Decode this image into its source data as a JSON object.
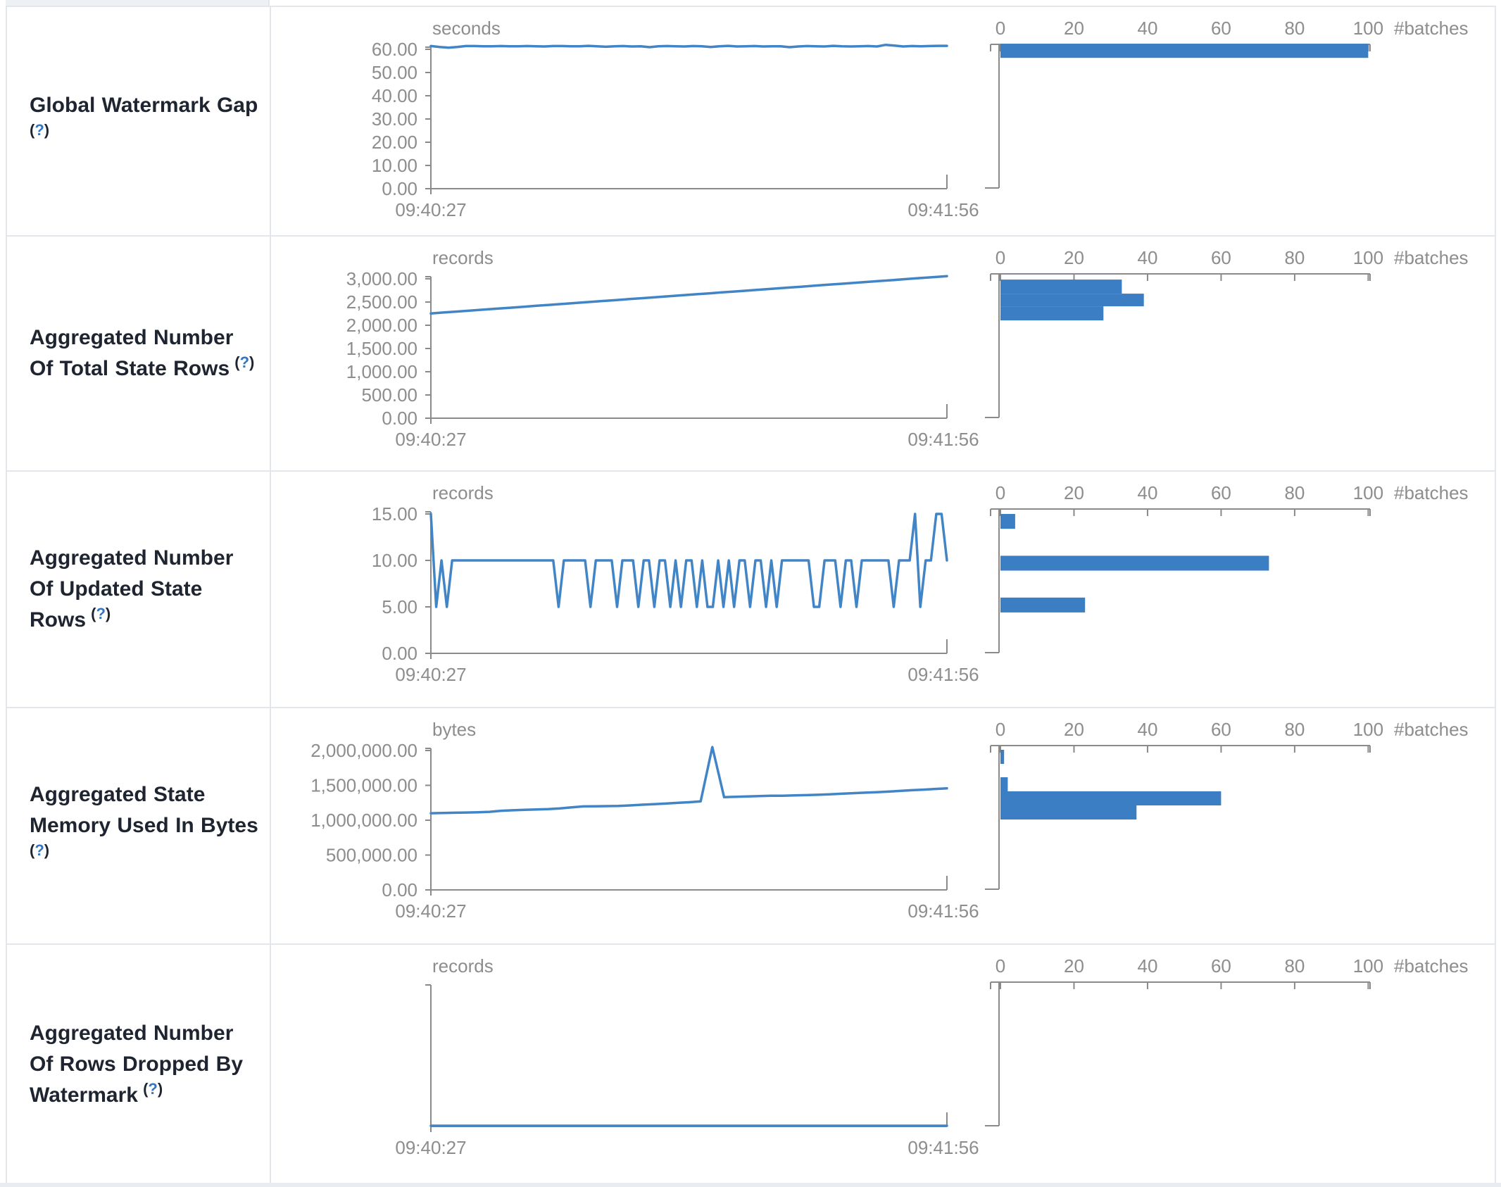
{
  "page": {
    "bg": "#ffffff",
    "page_edge_bg": "#e9edf1",
    "border_color": "#e3e6ea",
    "axis_color": "#8a8a8a",
    "tick_text_color": "#8d8d8d",
    "label_text_color": "#1f2530",
    "help_link_color": "#3276c3",
    "line_color": "#4285c6",
    "bar_color": "#3b7ec4"
  },
  "x_axis": {
    "start": "09:40:27",
    "end": "09:41:56"
  },
  "histogram_axis": {
    "tick_labels": [
      "0",
      "20",
      "40",
      "60",
      "80",
      "100"
    ],
    "tick_values": [
      0,
      20,
      40,
      60,
      80,
      100
    ],
    "unit_label": "#batches",
    "max": 100
  },
  "metrics": [
    {
      "label": "Global Watermark Gap",
      "help": "?"
    },
    {
      "label": "Aggregated Number Of Total State Rows",
      "help": "?"
    },
    {
      "label": "Aggregated Number Of Updated State Rows",
      "help": "?"
    },
    {
      "label": "Aggregated State Memory Used In Bytes",
      "help": "?"
    },
    {
      "label": "Aggregated Number Of Rows Dropped By Watermark",
      "help": "?"
    }
  ],
  "chart_data": [
    {
      "type": "line",
      "title": "Global Watermark Gap",
      "unit": "seconds",
      "x_range": [
        "09:40:27",
        "09:41:56"
      ],
      "y_scale_max": 60,
      "y_ticks": [
        60,
        50,
        40,
        30,
        20,
        10,
        0
      ],
      "y_tick_labels": [
        "60.00",
        "50.00",
        "40.00",
        "30.00",
        "20.00",
        "10.00",
        "0.00"
      ],
      "values": [
        61.4,
        61.0,
        60.7,
        61.0,
        61.4,
        61.4,
        61.3,
        61.3,
        61.4,
        61.3,
        61.3,
        61.4,
        61.3,
        61.2,
        61.4,
        61.4,
        61.3,
        61.3,
        61.5,
        61.3,
        61.1,
        61.3,
        61.4,
        61.2,
        61.3,
        60.9,
        61.3,
        61.4,
        61.3,
        61.2,
        61.4,
        61.3,
        61.0,
        61.3,
        61.5,
        61.2,
        61.3,
        61.4,
        61.2,
        61.3,
        61.3,
        60.9,
        61.2,
        61.4,
        61.3,
        61.2,
        61.5,
        61.3,
        61.2,
        61.3,
        61.4,
        61.2,
        61.9,
        61.6,
        61.2,
        61.4,
        61.3,
        61.4,
        61.5,
        61.5
      ],
      "histogram": {
        "type": "bar",
        "xlabel": "#batches",
        "x_ticks": [
          0,
          20,
          40,
          60,
          80,
          100
        ],
        "bins": [
          {
            "count": 100,
            "value_range": [
              56.3,
              62.4
            ]
          }
        ]
      }
    },
    {
      "type": "line",
      "title": "Aggregated Number Of Total State Rows",
      "unit": "records",
      "x_range": [
        "09:40:27",
        "09:41:56"
      ],
      "y_scale_max": 3000,
      "y_ticks": [
        3000,
        2500,
        2000,
        1500,
        1000,
        500,
        0
      ],
      "y_tick_labels": [
        "3,000.00",
        "2,500.00",
        "2,000.00",
        "1,500.00",
        "1,000.00",
        "500.00",
        "0.00"
      ],
      "values": [
        2255,
        2275,
        2295,
        2316,
        2337,
        2357,
        2378,
        2398,
        2419,
        2440,
        2460,
        2481,
        2501,
        2522,
        2543,
        2563,
        2584,
        2604,
        2625,
        2646,
        2666,
        2687,
        2707,
        2728,
        2749,
        2769,
        2790,
        2810,
        2831,
        2852,
        2872,
        2893,
        2913,
        2934,
        2955,
        2975,
        2996,
        3016,
        3037,
        3058
      ],
      "histogram": {
        "type": "bar",
        "xlabel": "#batches",
        "x_ticks": [
          0,
          20,
          40,
          60,
          80,
          100
        ],
        "bins": [
          {
            "count": 33,
            "value_range": [
              2681,
              2984
            ]
          },
          {
            "count": 39,
            "value_range": [
              2408,
              2681
            ]
          },
          {
            "count": 28,
            "value_range": [
              2105,
              2408
            ]
          }
        ]
      }
    },
    {
      "type": "line",
      "title": "Aggregated Number Of Updated State Rows",
      "unit": "records",
      "x_range": [
        "09:40:27",
        "09:41:56"
      ],
      "y_scale_max": 15,
      "y_ticks": [
        15,
        10,
        5,
        0
      ],
      "y_tick_labels": [
        "15.00",
        "10.00",
        "5.00",
        "0.00"
      ],
      "values": [
        15,
        5,
        10,
        5,
        10,
        10,
        10,
        10,
        10,
        10,
        10,
        10,
        10,
        10,
        10,
        10,
        10,
        10,
        10,
        10,
        10,
        10,
        10,
        10,
        5,
        10,
        10,
        10,
        10,
        10,
        5,
        10,
        10,
        10,
        10,
        5,
        10,
        10,
        10,
        5,
        10,
        10,
        5,
        10,
        10,
        5,
        10,
        5,
        10,
        10,
        5,
        10,
        5,
        5,
        10,
        5,
        10,
        5,
        10,
        10,
        5,
        10,
        10,
        5,
        10,
        5,
        10,
        10,
        10,
        10,
        10,
        10,
        5,
        5,
        10,
        10,
        10,
        5,
        10,
        10,
        5,
        10,
        10,
        10,
        10,
        10,
        10,
        5,
        10,
        10,
        10,
        15,
        5,
        10,
        10,
        15,
        15,
        10
      ],
      "histogram": {
        "type": "bar",
        "xlabel": "#batches",
        "x_ticks": [
          0,
          20,
          40,
          60,
          80,
          100
        ],
        "bins": [
          {
            "count": 4,
            "value_range": [
              13.4,
              15.0
            ]
          },
          {
            "count": 73,
            "value_range": [
              8.9,
              10.5
            ]
          },
          {
            "count": 23,
            "value_range": [
              4.4,
              6.0
            ]
          }
        ]
      }
    },
    {
      "type": "line",
      "title": "Aggregated State Memory Used In Bytes",
      "unit": "bytes",
      "x_range": [
        "09:40:27",
        "09:41:56"
      ],
      "y_scale_max": 2000000,
      "y_ticks": [
        2000000,
        1500000,
        1000000,
        500000,
        0
      ],
      "y_tick_labels": [
        "2,000,000.00",
        "1,500,000.00",
        "1,000,000.00",
        "500,000.00",
        "0.00"
      ],
      "values": [
        1100000,
        1103000,
        1107000,
        1110000,
        1114000,
        1120000,
        1135000,
        1142000,
        1150000,
        1155000,
        1160000,
        1170000,
        1185000,
        1198000,
        1200000,
        1202000,
        1205000,
        1212000,
        1222000,
        1230000,
        1238000,
        1248000,
        1258000,
        1270000,
        2050000,
        1330000,
        1336000,
        1340000,
        1345000,
        1350000,
        1352000,
        1356000,
        1360000,
        1365000,
        1372000,
        1380000,
        1388000,
        1395000,
        1402000,
        1410000,
        1420000,
        1430000,
        1438000,
        1448000,
        1458000
      ],
      "histogram": {
        "type": "bar",
        "xlabel": "#batches",
        "x_ticks": [
          0,
          20,
          40,
          60,
          80,
          100
        ],
        "bins": [
          {
            "count": 1,
            "value_range": [
              1808000,
              2010000
            ]
          },
          {
            "count": 2,
            "value_range": [
              1414000,
              1616000
            ]
          },
          {
            "count": 60,
            "value_range": [
              1212000,
              1414000
            ]
          },
          {
            "count": 37,
            "value_range": [
              1010000,
              1212000
            ]
          }
        ]
      }
    },
    {
      "type": "line",
      "title": "Aggregated Number Of Rows Dropped By Watermark",
      "unit": "records",
      "x_range": [
        "09:40:27",
        "09:41:56"
      ],
      "y_scale_max": null,
      "y_ticks": [],
      "y_tick_labels": [],
      "values": [
        0,
        0,
        0,
        0,
        0,
        0,
        0,
        0,
        0,
        0
      ],
      "histogram": {
        "type": "bar",
        "xlabel": "#batches",
        "x_ticks": [
          0,
          20,
          40,
          60,
          80,
          100
        ],
        "bins": []
      }
    }
  ]
}
